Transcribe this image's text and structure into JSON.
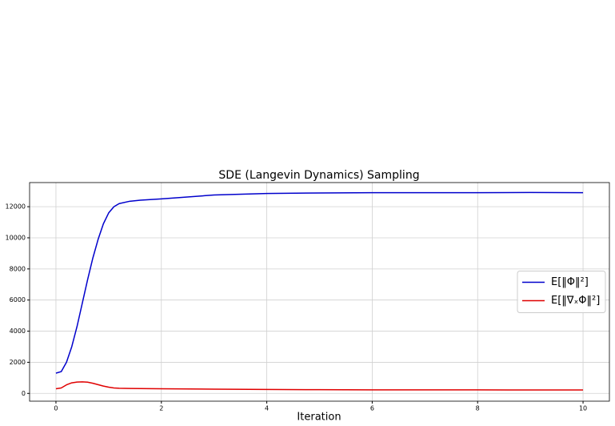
{
  "chart_data": {
    "type": "line",
    "title": "SDE (Langevin Dynamics) Sampling",
    "x_label": "Iteration",
    "x": [
      0,
      0.1,
      0.2,
      0.3,
      0.4,
      0.5,
      0.6,
      0.7,
      0.8,
      0.9,
      1.0,
      1.1,
      1.2,
      1.4,
      1.6,
      2,
      3,
      4,
      5,
      6,
      7,
      8,
      9,
      10
    ],
    "series": [
      {
        "name": "E[‖Φ‖²]",
        "color": "#0000cc",
        "values": [
          1300,
          1400,
          2000,
          3000,
          4300,
          5800,
          7300,
          8700,
          9900,
          10900,
          11600,
          12000,
          12200,
          12350,
          12420,
          12500,
          12750,
          12850,
          12880,
          12900,
          12900,
          12900,
          12910,
          12900
        ]
      },
      {
        "name": "E[‖∇ₓΦ‖²]",
        "color": "#e00000",
        "values": [
          300,
          350,
          550,
          680,
          730,
          740,
          720,
          650,
          560,
          470,
          400,
          350,
          330,
          320,
          310,
          300,
          270,
          250,
          240,
          230,
          228,
          225,
          222,
          220
        ]
      }
    ],
    "xlim": [
      -0.5,
      10.5
    ],
    "xticks": [
      0,
      2,
      4,
      6,
      8,
      10
    ],
    "ylim": [
      -500,
      13550
    ],
    "yticks": [
      0,
      2000,
      4000,
      6000,
      8000,
      10000,
      12000
    ],
    "grid": true,
    "legend": "right"
  }
}
